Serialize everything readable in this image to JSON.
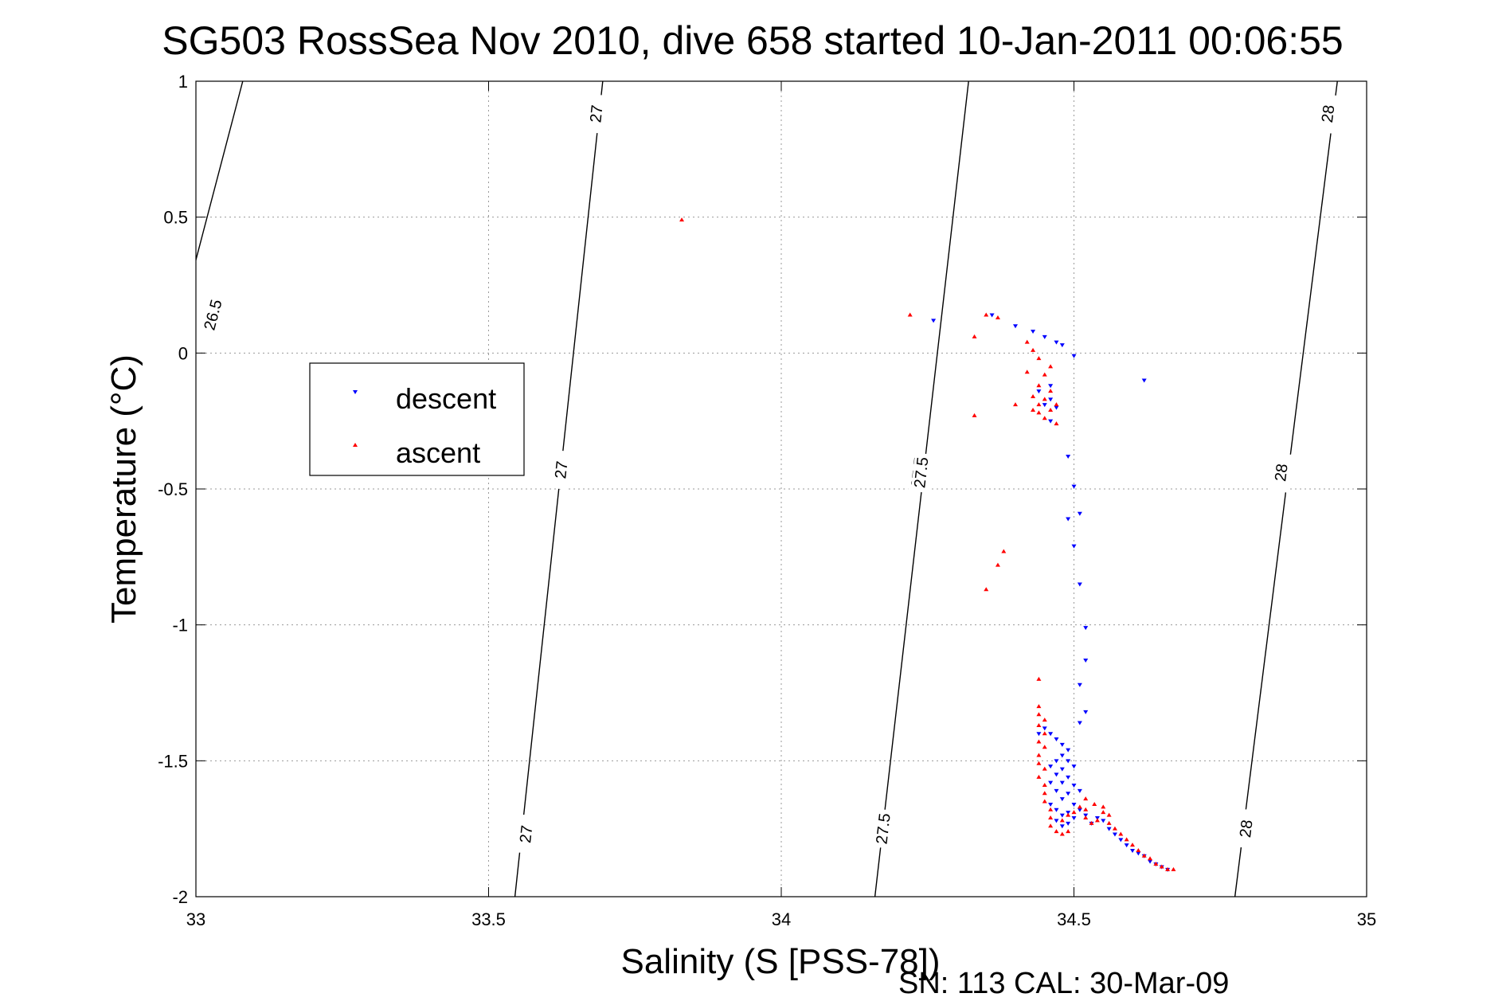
{
  "chart_data": {
    "type": "scatter",
    "title": "SG503 RossSea Nov 2010, dive 658 started 10-Jan-2011 00:06:55",
    "xlabel": "Salinity (S [PSS-78])",
    "ylabel": "Temperature (°C)",
    "footer": "SN: 113  CAL: 30-Mar-09",
    "xlim": [
      33,
      35
    ],
    "ylim": [
      -2,
      1
    ],
    "xticks": [
      "33",
      "33.5",
      "34",
      "34.5",
      "35"
    ],
    "yticks": [
      "1",
      "0.5",
      "0",
      "-0.5",
      "-1",
      "-1.5",
      "-2"
    ],
    "grid": true,
    "legend": {
      "position": "left",
      "entries": [
        {
          "label": "descent",
          "color": "#0000ff",
          "marker": "triangle-down"
        },
        {
          "label": "ascent",
          "color": "#ff0000",
          "marker": "triangle-up"
        }
      ]
    },
    "density_contours": [
      {
        "level": "26.5",
        "line": [
          [
            32.94,
            -0.15
          ],
          [
            33.08,
            1.0
          ]
        ],
        "labels": [
          [
            33.03,
            0.14
          ]
        ]
      },
      {
        "level": "27",
        "line": [
          [
            33.545,
            -2.0
          ],
          [
            33.695,
            1.0
          ]
        ],
        "labels": [
          [
            33.565,
            -1.77
          ],
          [
            33.625,
            -0.43
          ],
          [
            33.685,
            0.88
          ]
        ]
      },
      {
        "level": "27.5",
        "line": [
          [
            34.16,
            -2.0
          ],
          [
            34.32,
            1.0
          ]
        ],
        "labels": [
          [
            34.175,
            -1.75
          ],
          [
            34.235,
            -0.44
          ],
          [
            34.24,
            -0.44
          ]
        ]
      },
      {
        "level": "28",
        "line": [
          [
            34.775,
            -2.0
          ],
          [
            34.95,
            1.0
          ]
        ],
        "labels": [
          [
            34.795,
            -1.75
          ],
          [
            34.855,
            -0.44
          ],
          [
            34.935,
            0.88
          ]
        ]
      }
    ],
    "series": [
      {
        "name": "descent",
        "color": "#0000ff",
        "marker": "triangle-down",
        "points": [
          [
            34.36,
            0.14
          ],
          [
            34.26,
            0.12
          ],
          [
            34.4,
            0.1
          ],
          [
            34.43,
            0.08
          ],
          [
            34.45,
            0.06
          ],
          [
            34.47,
            0.04
          ],
          [
            34.48,
            0.03
          ],
          [
            34.5,
            -0.01
          ],
          [
            34.62,
            -0.1
          ],
          [
            34.46,
            -0.12
          ],
          [
            34.44,
            -0.14
          ],
          [
            34.46,
            -0.17
          ],
          [
            34.45,
            -0.19
          ],
          [
            34.47,
            -0.2
          ],
          [
            34.46,
            -0.25
          ],
          [
            34.49,
            -0.38
          ],
          [
            34.5,
            -0.49
          ],
          [
            34.51,
            -0.59
          ],
          [
            34.49,
            -0.61
          ],
          [
            34.5,
            -0.71
          ],
          [
            34.51,
            -0.85
          ],
          [
            34.52,
            -1.01
          ],
          [
            34.52,
            -1.13
          ],
          [
            34.51,
            -1.22
          ],
          [
            34.52,
            -1.32
          ],
          [
            34.51,
            -1.36
          ],
          [
            34.44,
            -1.4
          ],
          [
            34.45,
            -1.38
          ],
          [
            34.46,
            -1.4
          ],
          [
            34.47,
            -1.42
          ],
          [
            34.48,
            -1.44
          ],
          [
            34.49,
            -1.46
          ],
          [
            34.48,
            -1.48
          ],
          [
            34.47,
            -1.5
          ],
          [
            34.49,
            -1.5
          ],
          [
            34.46,
            -1.52
          ],
          [
            34.48,
            -1.53
          ],
          [
            34.5,
            -1.52
          ],
          [
            34.47,
            -1.55
          ],
          [
            34.49,
            -1.56
          ],
          [
            34.46,
            -1.58
          ],
          [
            34.48,
            -1.58
          ],
          [
            34.5,
            -1.59
          ],
          [
            34.47,
            -1.61
          ],
          [
            34.49,
            -1.62
          ],
          [
            34.51,
            -1.61
          ],
          [
            34.48,
            -1.64
          ],
          [
            34.46,
            -1.66
          ],
          [
            34.5,
            -1.66
          ],
          [
            34.47,
            -1.68
          ],
          [
            34.49,
            -1.69
          ],
          [
            34.51,
            -1.68
          ],
          [
            34.48,
            -1.7
          ],
          [
            34.5,
            -1.71
          ],
          [
            34.52,
            -1.7
          ],
          [
            34.54,
            -1.71
          ],
          [
            34.47,
            -1.72
          ],
          [
            34.49,
            -1.73
          ],
          [
            34.53,
            -1.73
          ],
          [
            34.55,
            -1.72
          ],
          [
            34.48,
            -1.74
          ],
          [
            34.56,
            -1.75
          ],
          [
            34.57,
            -1.77
          ],
          [
            34.58,
            -1.79
          ],
          [
            34.59,
            -1.81
          ],
          [
            34.6,
            -1.83
          ],
          [
            34.61,
            -1.84
          ],
          [
            34.62,
            -1.85
          ],
          [
            34.63,
            -1.87
          ],
          [
            34.64,
            -1.88
          ],
          [
            34.65,
            -1.89
          ],
          [
            34.66,
            -1.9
          ]
        ]
      },
      {
        "name": "ascent",
        "color": "#ff0000",
        "marker": "triangle-up",
        "points": [
          [
            33.83,
            0.49
          ],
          [
            34.22,
            0.14
          ],
          [
            34.35,
            0.14
          ],
          [
            34.37,
            0.13
          ],
          [
            34.33,
            0.06
          ],
          [
            34.42,
            0.04
          ],
          [
            34.43,
            0.01
          ],
          [
            34.44,
            -0.02
          ],
          [
            34.46,
            -0.05
          ],
          [
            34.42,
            -0.07
          ],
          [
            34.45,
            -0.08
          ],
          [
            34.44,
            -0.12
          ],
          [
            34.46,
            -0.14
          ],
          [
            34.43,
            -0.16
          ],
          [
            34.45,
            -0.17
          ],
          [
            34.44,
            -0.19
          ],
          [
            34.47,
            -0.19
          ],
          [
            34.46,
            -0.21
          ],
          [
            34.44,
            -0.22
          ],
          [
            34.45,
            -0.24
          ],
          [
            34.47,
            -0.26
          ],
          [
            34.4,
            -0.19
          ],
          [
            34.43,
            -0.21
          ],
          [
            34.33,
            -0.23
          ],
          [
            34.38,
            -0.73
          ],
          [
            34.37,
            -0.78
          ],
          [
            34.35,
            -0.87
          ],
          [
            34.44,
            -1.2
          ],
          [
            34.44,
            -1.3
          ],
          [
            34.44,
            -1.33
          ],
          [
            34.45,
            -1.35
          ],
          [
            34.44,
            -1.37
          ],
          [
            34.45,
            -1.4
          ],
          [
            34.44,
            -1.43
          ],
          [
            34.45,
            -1.45
          ],
          [
            34.44,
            -1.48
          ],
          [
            34.44,
            -1.51
          ],
          [
            34.45,
            -1.53
          ],
          [
            34.44,
            -1.56
          ],
          [
            34.45,
            -1.59
          ],
          [
            34.45,
            -1.62
          ],
          [
            34.45,
            -1.65
          ],
          [
            34.46,
            -1.68
          ],
          [
            34.46,
            -1.71
          ],
          [
            34.46,
            -1.74
          ],
          [
            34.47,
            -1.76
          ],
          [
            34.48,
            -1.77
          ],
          [
            34.49,
            -1.76
          ],
          [
            34.48,
            -1.72
          ],
          [
            34.49,
            -1.7
          ],
          [
            34.5,
            -1.69
          ],
          [
            34.51,
            -1.67
          ],
          [
            34.52,
            -1.68
          ],
          [
            34.52,
            -1.71
          ],
          [
            34.53,
            -1.73
          ],
          [
            34.54,
            -1.72
          ],
          [
            34.55,
            -1.69
          ],
          [
            34.55,
            -1.67
          ],
          [
            34.56,
            -1.7
          ],
          [
            34.56,
            -1.73
          ],
          [
            34.57,
            -1.75
          ],
          [
            34.58,
            -1.77
          ],
          [
            34.59,
            -1.79
          ],
          [
            34.6,
            -1.81
          ],
          [
            34.61,
            -1.83
          ],
          [
            34.62,
            -1.85
          ],
          [
            34.63,
            -1.86
          ],
          [
            34.64,
            -1.88
          ],
          [
            34.65,
            -1.89
          ],
          [
            34.66,
            -1.9
          ],
          [
            34.67,
            -1.9
          ],
          [
            34.535,
            -1.66
          ],
          [
            34.52,
            -1.64
          ]
        ]
      }
    ]
  }
}
